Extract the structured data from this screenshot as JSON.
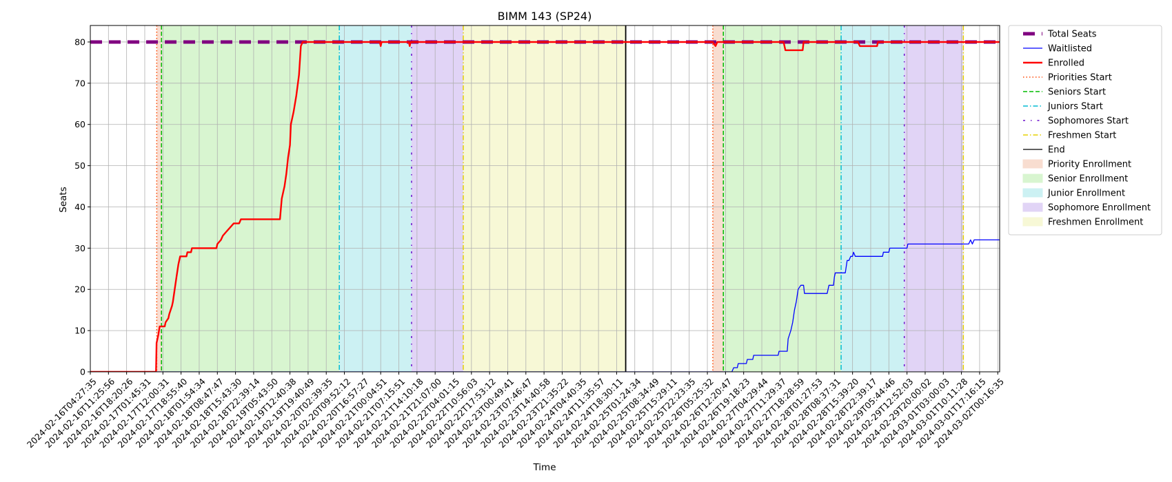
{
  "chart_data": {
    "type": "line",
    "title": "BIMM 143 (SP24)",
    "xlabel": "Time",
    "ylabel": "Seats",
    "ylim": [
      0,
      84
    ],
    "y_ticks": [
      0,
      10,
      20,
      30,
      40,
      50,
      60,
      70,
      80
    ],
    "x_tick_labels": [
      "2024-02-16T04:27:35",
      "2024-02-16T11:25:56",
      "2024-02-16T18:20:26",
      "2024-02-17T01:45:31",
      "2024-02-17T12:00:31",
      "2024-02-17T18:55:40",
      "2024-02-18T01:54:34",
      "2024-02-18T08:47:47",
      "2024-02-18T15:43:30",
      "2024-02-18T22:39:14",
      "2024-02-19T05:43:50",
      "2024-02-19T12:40:38",
      "2024-02-19T19:40:49",
      "2024-02-20T02:39:35",
      "2024-02-20T09:52:12",
      "2024-02-20T16:57:27",
      "2024-02-21T00:04:51",
      "2024-02-21T07:15:51",
      "2024-02-21T14:10:18",
      "2024-02-21T21:07:00",
      "2024-02-22T04:01:15",
      "2024-02-22T10:56:03",
      "2024-02-22T17:53:12",
      "2024-02-23T00:49:41",
      "2024-02-23T07:46:47",
      "2024-02-23T14:40:58",
      "2024-02-23T21:35:22",
      "2024-02-24T04:40:35",
      "2024-02-24T11:35:57",
      "2024-02-24T18:30:11",
      "2024-02-25T01:24:34",
      "2024-02-25T08:34:49",
      "2024-02-25T15:29:11",
      "2024-02-25T22:23:35",
      "2024-02-26T05:25:32",
      "2024-02-26T12:20:47",
      "2024-02-26T19:18:23",
      "2024-02-27T04:29:44",
      "2024-02-27T11:29:37",
      "2024-02-27T18:28:59",
      "2024-02-28T01:27:53",
      "2024-02-28T08:37:31",
      "2024-02-28T15:39:20",
      "2024-02-28T22:39:17",
      "2024-02-29T05:44:46",
      "2024-02-29T12:52:03",
      "2024-02-29T20:00:02",
      "2024-03-01T03:00:03",
      "2024-03-01T10:11:28",
      "2024-03-01T17:16:15",
      "2024-03-02T00:16:35"
    ],
    "legend": [
      {
        "label": "Total Seats",
        "kind": "line",
        "color": "#800080",
        "style": "thick-dash"
      },
      {
        "label": "Waitlisted",
        "kind": "line",
        "color": "#0000ff",
        "style": "solid"
      },
      {
        "label": "Enrolled",
        "kind": "line",
        "color": "#ff0000",
        "style": "solid-thick"
      },
      {
        "label": "Priorities Start",
        "kind": "line",
        "color": "#ff4500",
        "style": "dotted"
      },
      {
        "label": "Seniors Start",
        "kind": "line",
        "color": "#00bb00",
        "style": "dashed"
      },
      {
        "label": "Juniors Start",
        "kind": "line",
        "color": "#00bcd4",
        "style": "dashdot"
      },
      {
        "label": "Sophomores Start",
        "kind": "line",
        "color": "#6a0dcc",
        "style": "loose-dashdot"
      },
      {
        "label": "Freshmen Start",
        "kind": "line",
        "color": "#e5d000",
        "style": "dashdot"
      },
      {
        "label": "End",
        "kind": "line",
        "color": "#000000",
        "style": "solid"
      },
      {
        "label": "Priority Enrollment",
        "kind": "patch",
        "color": "#f8ddd0"
      },
      {
        "label": "Senior Enrollment",
        "kind": "patch",
        "color": "#d8f5d0"
      },
      {
        "label": "Junior Enrollment",
        "kind": "patch",
        "color": "#ccf1f3"
      },
      {
        "label": "Sophomore Enrollment",
        "kind": "patch",
        "color": "#e1d4f6"
      },
      {
        "label": "Freshmen Enrollment",
        "kind": "patch",
        "color": "#f7f8d6"
      }
    ],
    "periods": [
      {
        "name": "Priority Enrollment",
        "start": 3.66,
        "end": 3.92,
        "color": "#f8ddd0"
      },
      {
        "name": "Senior Enrollment",
        "start": 3.92,
        "end": 13.72,
        "color": "#d8f5d0"
      },
      {
        "name": "Junior Enrollment",
        "start": 13.72,
        "end": 17.7,
        "color": "#ccf1f3"
      },
      {
        "name": "Sophomore Enrollment",
        "start": 17.7,
        "end": 20.55,
        "color": "#e1d4f6"
      },
      {
        "name": "Freshmen Enrollment",
        "start": 20.55,
        "end": 29.5,
        "color": "#f7f8d6"
      },
      {
        "name": "Priority Enrollment",
        "start": 34.3,
        "end": 34.88,
        "color": "#f8ddd0"
      },
      {
        "name": "Senior Enrollment",
        "start": 34.88,
        "end": 41.37,
        "color": "#d8f5d0"
      },
      {
        "name": "Junior Enrollment",
        "start": 41.37,
        "end": 44.85,
        "color": "#ccf1f3"
      },
      {
        "name": "Sophomore Enrollment",
        "start": 44.85,
        "end": 48.1,
        "color": "#e1d4f6"
      },
      {
        "name": "Freshmen Enrollment",
        "start": 48.1,
        "end": 48.15,
        "color": "#f7f8d6"
      }
    ],
    "markers": [
      {
        "name": "Priorities Start",
        "x": 3.66,
        "color": "#ff4500",
        "style": "dotted"
      },
      {
        "name": "Seniors Start",
        "x": 3.92,
        "color": "#00bb00",
        "style": "dashed"
      },
      {
        "name": "Juniors Start",
        "x": 13.72,
        "color": "#00bcd4",
        "style": "dashdot"
      },
      {
        "name": "Sophomores Start",
        "x": 17.7,
        "color": "#6a0dcc",
        "style": "loose-dashdot"
      },
      {
        "name": "Freshmen Start",
        "x": 20.55,
        "color": "#e5d000",
        "style": "dashdot"
      },
      {
        "name": "End",
        "x": 29.5,
        "color": "#000000",
        "style": "solid"
      },
      {
        "name": "Priorities Start",
        "x": 34.3,
        "color": "#ff4500",
        "style": "dotted"
      },
      {
        "name": "Seniors Start",
        "x": 34.88,
        "color": "#00bb00",
        "style": "dashed"
      },
      {
        "name": "Juniors Start",
        "x": 41.37,
        "color": "#00bcd4",
        "style": "dashdot"
      },
      {
        "name": "Sophomores Start",
        "x": 44.85,
        "color": "#6a0dcc",
        "style": "loose-dashdot"
      },
      {
        "name": "Freshmen Start",
        "x": 48.1,
        "color": "#e5d000",
        "style": "dashdot"
      }
    ],
    "series": [
      {
        "name": "Total Seats",
        "color": "#800080",
        "style": "thick-dash",
        "points": [
          [
            0,
            80
          ],
          [
            50.5,
            80
          ]
        ]
      },
      {
        "name": "Waitlisted",
        "color": "#0000ff",
        "style": "solid",
        "points": [
          [
            0,
            0
          ],
          [
            35.35,
            0
          ],
          [
            35.45,
            1
          ],
          [
            35.65,
            1
          ],
          [
            35.7,
            2
          ],
          [
            36.15,
            2
          ],
          [
            36.2,
            3
          ],
          [
            36.5,
            3
          ],
          [
            36.55,
            4
          ],
          [
            37.9,
            4
          ],
          [
            37.95,
            5
          ],
          [
            38.4,
            5
          ],
          [
            38.45,
            8
          ],
          [
            38.6,
            10
          ],
          [
            38.7,
            12
          ],
          [
            38.8,
            15
          ],
          [
            38.9,
            17
          ],
          [
            39.0,
            20
          ],
          [
            39.15,
            21
          ],
          [
            39.3,
            21
          ],
          [
            39.35,
            19
          ],
          [
            40.6,
            19
          ],
          [
            40.7,
            21
          ],
          [
            40.95,
            21
          ],
          [
            41.0,
            23
          ],
          [
            41.05,
            24
          ],
          [
            41.6,
            24
          ],
          [
            41.7,
            27
          ],
          [
            41.8,
            27
          ],
          [
            41.9,
            28
          ],
          [
            42.0,
            28
          ],
          [
            42.05,
            29
          ],
          [
            42.15,
            28
          ],
          [
            43.65,
            28
          ],
          [
            43.7,
            29
          ],
          [
            44.0,
            29
          ],
          [
            44.05,
            30
          ],
          [
            45.0,
            30
          ],
          [
            45.05,
            31
          ],
          [
            48.4,
            31
          ],
          [
            48.5,
            32
          ],
          [
            48.6,
            31
          ],
          [
            48.7,
            32
          ],
          [
            50.5,
            32
          ]
        ]
      },
      {
        "name": "Enrolled",
        "color": "#ff0000",
        "style": "solid-thick",
        "points": [
          [
            0,
            0
          ],
          [
            3.62,
            0
          ],
          [
            3.65,
            7
          ],
          [
            3.75,
            9
          ],
          [
            3.82,
            11
          ],
          [
            4.1,
            11
          ],
          [
            4.15,
            12
          ],
          [
            4.3,
            13
          ],
          [
            4.35,
            14
          ],
          [
            4.5,
            16
          ],
          [
            4.55,
            17
          ],
          [
            4.65,
            20
          ],
          [
            4.75,
            23
          ],
          [
            4.85,
            26
          ],
          [
            4.95,
            28
          ],
          [
            5.3,
            28
          ],
          [
            5.35,
            29
          ],
          [
            5.55,
            29
          ],
          [
            5.6,
            30
          ],
          [
            6.95,
            30
          ],
          [
            7.0,
            31
          ],
          [
            7.2,
            32
          ],
          [
            7.3,
            33
          ],
          [
            7.5,
            34
          ],
          [
            7.7,
            35
          ],
          [
            7.9,
            36
          ],
          [
            8.2,
            36
          ],
          [
            8.3,
            37
          ],
          [
            10.45,
            37
          ],
          [
            10.55,
            42
          ],
          [
            10.7,
            45
          ],
          [
            10.8,
            48
          ],
          [
            10.9,
            52
          ],
          [
            11.0,
            55
          ],
          [
            11.05,
            60
          ],
          [
            11.2,
            63
          ],
          [
            11.35,
            67
          ],
          [
            11.5,
            72
          ],
          [
            11.6,
            79
          ],
          [
            11.7,
            80
          ],
          [
            15.95,
            80
          ],
          [
            16.0,
            79
          ],
          [
            16.05,
            80
          ],
          [
            17.55,
            80
          ],
          [
            17.6,
            79
          ],
          [
            17.65,
            80
          ],
          [
            34.3,
            80
          ],
          [
            34.45,
            79
          ],
          [
            34.55,
            80
          ],
          [
            38.2,
            80
          ],
          [
            38.3,
            78
          ],
          [
            39.25,
            78
          ],
          [
            39.3,
            80
          ],
          [
            42.3,
            80
          ],
          [
            42.4,
            79
          ],
          [
            43.35,
            79
          ],
          [
            43.4,
            80
          ],
          [
            50.5,
            80
          ]
        ]
      }
    ]
  }
}
